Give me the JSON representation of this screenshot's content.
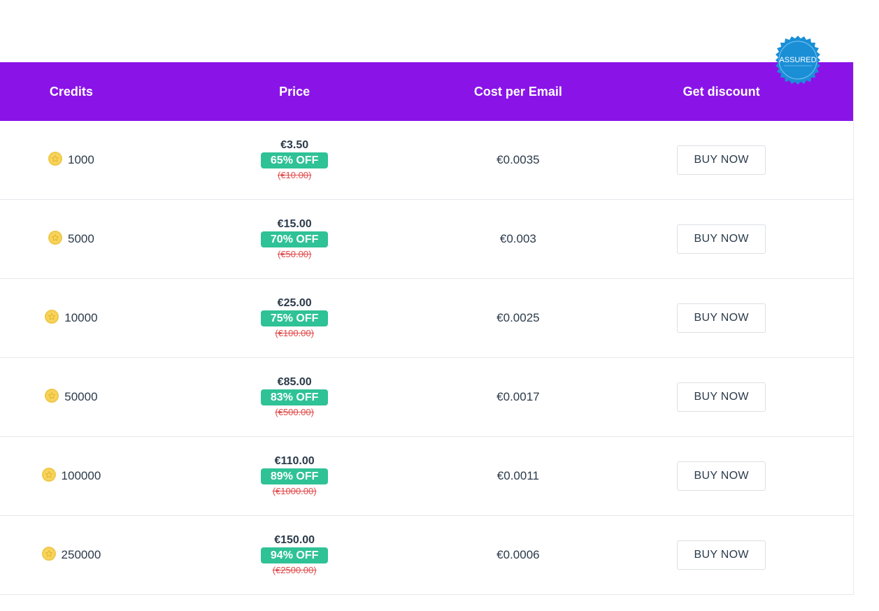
{
  "header": {
    "credits": "Credits",
    "price": "Price",
    "cost_per_email": "Cost per Email",
    "get_discount": "Get discount"
  },
  "badge": {
    "label": "ASSURED"
  },
  "rows": [
    {
      "credits": "1000",
      "price": "€3.50",
      "off": "65% OFF",
      "old": "(€10.00)",
      "cpe": "€0.0035",
      "button": "BUY NOW"
    },
    {
      "credits": "5000",
      "price": "€15.00",
      "off": "70% OFF",
      "old": "(€50.00)",
      "cpe": "€0.003",
      "button": "BUY NOW"
    },
    {
      "credits": "10000",
      "price": "€25.00",
      "off": "75% OFF",
      "old": "(€100.00)",
      "cpe": "€0.0025",
      "button": "BUY NOW"
    },
    {
      "credits": "50000",
      "price": "€85.00",
      "off": "83% OFF",
      "old": "(€500.00)",
      "cpe": "€0.0017",
      "button": "BUY NOW"
    },
    {
      "credits": "100000",
      "price": "€110.00",
      "off": "89% OFF",
      "old": "(€1000.00)",
      "cpe": "€0.0011",
      "button": "BUY NOW"
    },
    {
      "credits": "250000",
      "price": "€150.00",
      "off": "94% OFF",
      "old": "(€2500.00)",
      "cpe": "€0.0006",
      "button": "BUY NOW"
    }
  ],
  "colors": {
    "header_bg": "#8a14e8",
    "badge_green": "#2fc296",
    "old_price": "#e04a4a",
    "seal": "#1a8fd6"
  }
}
